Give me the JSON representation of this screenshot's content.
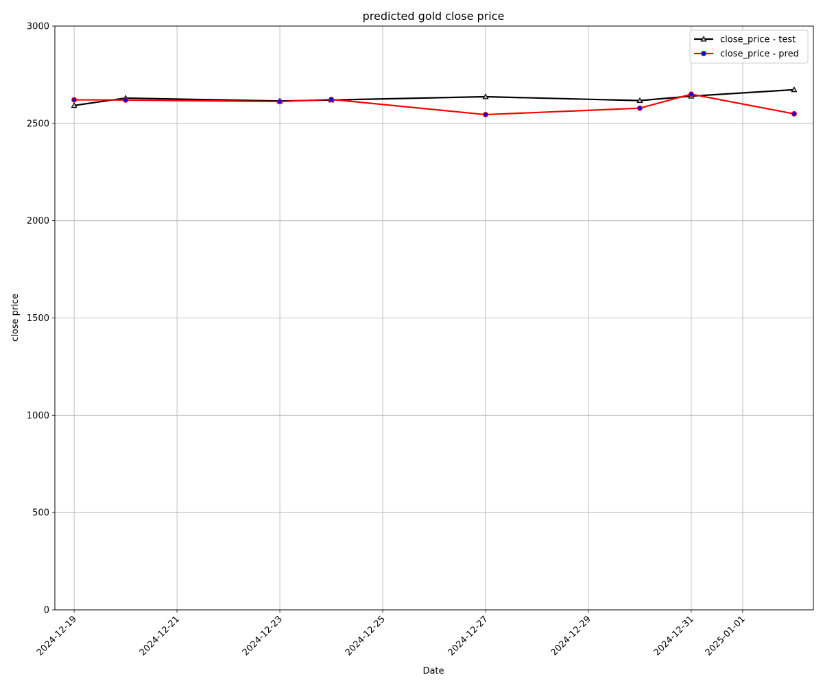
{
  "chart_data": {
    "type": "line",
    "title": "predicted gold close price",
    "xlabel": "Date",
    "ylabel": "close price",
    "ylim": [
      0,
      3000
    ],
    "yticks": [
      0,
      500,
      1000,
      1500,
      2000,
      2500,
      3000
    ],
    "xlim": [
      "2024-12-18T15:00",
      "2025-01-02T09:00"
    ],
    "xticks": [
      "2024-12-19",
      "2024-12-21",
      "2024-12-23",
      "2024-12-25",
      "2024-12-27",
      "2024-12-29",
      "2024-12-31",
      "2025-01-01"
    ],
    "grid": true,
    "legend_position": "top-right",
    "x": [
      "2024-12-19",
      "2024-12-20",
      "2024-12-23",
      "2024-12-24",
      "2024-12-27",
      "2024-12-30",
      "2024-12-31",
      "2025-01-02"
    ],
    "series": [
      {
        "name": "close_price - test",
        "color": "#000000",
        "marker": "triangle",
        "values": [
          2592,
          2630,
          2615,
          2620,
          2637,
          2617,
          2640,
          2673
        ]
      },
      {
        "name": "close_price - pred",
        "color": "#ff0000",
        "marker": "circle",
        "marker_fill": "#0000ff",
        "values": [
          2621,
          2620,
          2612,
          2623,
          2545,
          2578,
          2650,
          2549
        ]
      }
    ]
  }
}
